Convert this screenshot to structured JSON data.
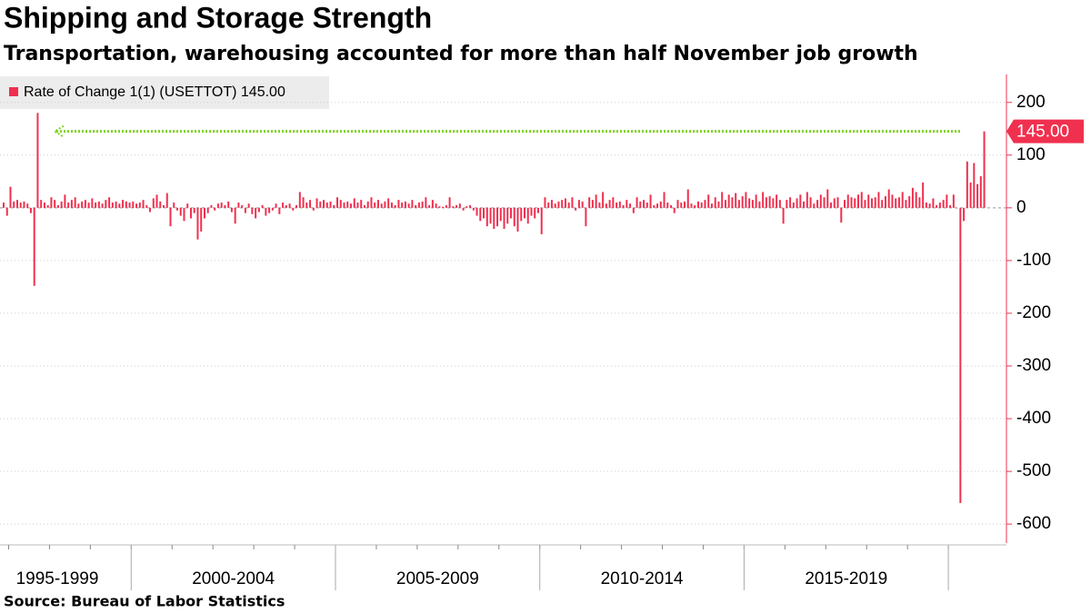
{
  "chart_data": {
    "type": "bar",
    "title": "Shipping and Storage Strength",
    "subtitle": "Transportation, warehousing accounted for more than half November job growth",
    "source": "Source:  Bureau of Labor Statistics",
    "periods": [
      "1995-1999",
      "2000-2004",
      "2005-2009",
      "2010-2014",
      "2015-2019"
    ],
    "series": [
      {
        "name": "Rate of Change 1(1) (USETTOT) 145.00",
        "color": "#f0304f",
        "values": [
          10,
          -15,
          40,
          12,
          15,
          10,
          12,
          8,
          -10,
          -148,
          180,
          15,
          10,
          5,
          20,
          15,
          5,
          12,
          25,
          10,
          15,
          20,
          8,
          12,
          15,
          10,
          18,
          10,
          12,
          8,
          15,
          20,
          10,
          12,
          8,
          15,
          12,
          10,
          12,
          8,
          10,
          15,
          5,
          -8,
          18,
          25,
          12,
          5,
          28,
          -35,
          10,
          -5,
          -15,
          -25,
          8,
          -20,
          -10,
          -60,
          -45,
          -20,
          -10,
          5,
          -5,
          8,
          10,
          5,
          12,
          -8,
          -30,
          10,
          5,
          -10,
          8,
          -12,
          -20,
          -8,
          5,
          -15,
          -10,
          -5,
          8,
          -12,
          10,
          5,
          8,
          -5,
          5,
          30,
          20,
          10,
          15,
          -5,
          18,
          12,
          15,
          10,
          12,
          5,
          20,
          15,
          10,
          12,
          8,
          18,
          10,
          15,
          5,
          12,
          20,
          10,
          15,
          8,
          12,
          18,
          10,
          5,
          15,
          10,
          12,
          8,
          15,
          5,
          10,
          12,
          20,
          5,
          15,
          8,
          3,
          2,
          5,
          20,
          3,
          5,
          8,
          -5,
          3,
          5,
          -5,
          -15,
          -25,
          -20,
          -35,
          -30,
          -40,
          -35,
          -25,
          -40,
          -30,
          -20,
          -35,
          -45,
          -25,
          -20,
          -30,
          -15,
          -20,
          -10,
          -50,
          20,
          10,
          15,
          8,
          12,
          15,
          18,
          10,
          20,
          -5,
          15,
          12,
          -35,
          20,
          15,
          25,
          10,
          30,
          8,
          15,
          20,
          10,
          12,
          5,
          15,
          8,
          -10,
          20,
          12,
          15,
          10,
          25,
          5,
          8,
          12,
          30,
          10,
          5,
          -10,
          15,
          10,
          12,
          35,
          8,
          5,
          12,
          10,
          15,
          25,
          8,
          20,
          12,
          30,
          15,
          25,
          20,
          28,
          15,
          22,
          30,
          18,
          15,
          25,
          12,
          30,
          20,
          22,
          18,
          25,
          15,
          -30,
          15,
          20,
          10,
          18,
          25,
          12,
          30,
          20,
          8,
          15,
          25,
          20,
          35,
          10,
          18,
          20,
          -28,
          15,
          25,
          20,
          18,
          25,
          30,
          15,
          25,
          18,
          20,
          30,
          15,
          22,
          35,
          25,
          18,
          20,
          30,
          15,
          22,
          38,
          30,
          20,
          48,
          10,
          8,
          18,
          5,
          10,
          15,
          25,
          5,
          25,
          0,
          -560,
          -25,
          88,
          48,
          85,
          45,
          60,
          145
        ]
      }
    ],
    "current_value_label": "145.00",
    "reference_color": "#7ed321",
    "ylim": [
      -636,
      253
    ],
    "yticks": [
      200,
      100,
      0,
      -100,
      -200,
      -300,
      -400,
      -500,
      -600
    ],
    "grid": true
  }
}
